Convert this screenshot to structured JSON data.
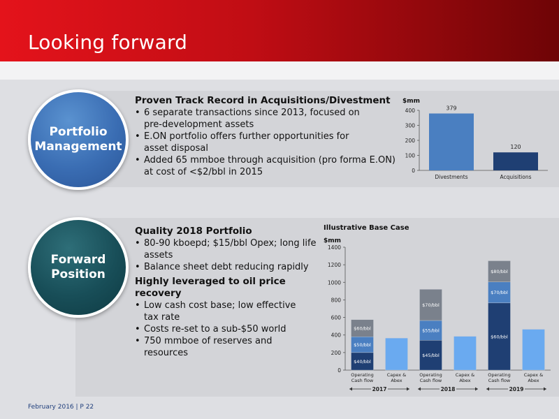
{
  "header": {
    "title": "Looking forward"
  },
  "section1": {
    "circle": [
      "Portfolio",
      "Management"
    ],
    "heading": "Proven Track Record in Acquisitions/Divestment",
    "bullets": [
      [
        "6 separate transactions since 2013, focused on",
        "pre-development assets"
      ],
      [
        "E.ON portfolio offers further opportunities for",
        "asset disposal"
      ],
      [
        "Added 65 mmboe through acquisition (pro forma E.ON)",
        "at cost of <$2/bbl in 2015"
      ]
    ]
  },
  "section2": {
    "circle": [
      "Forward",
      "Position"
    ],
    "heading1": "Quality 2018 Portfolio",
    "bullets1": [
      [
        "80-90 kboepd; $15/bbl Opex; long life",
        "assets"
      ],
      [
        "Balance sheet debt reducing rapidly"
      ]
    ],
    "heading2": "Highly leveraged to oil price recovery",
    "bullets2": [
      [
        "Low cash cost base; low effective",
        "tax rate"
      ],
      [
        "Costs re-set to a sub-$50 world"
      ],
      [
        "750 mmboe of reserves and",
        "resources"
      ]
    ]
  },
  "chart_data": [
    {
      "type": "bar",
      "ylabel": "$mm",
      "categories": [
        "Divestments",
        "Acquisitions"
      ],
      "values": [
        379,
        120
      ],
      "ylim": [
        0,
        400
      ],
      "yticks": [
        0,
        100,
        200,
        300,
        400
      ],
      "colors": [
        "#4a7fc1",
        "#1f3f73"
      ],
      "grid": false
    },
    {
      "type": "bar",
      "stacked": true,
      "title": "Illustrative Base Case",
      "ylabel": "$mm",
      "ylim": [
        0,
        1400
      ],
      "yticks": [
        0,
        200,
        400,
        600,
        800,
        1000,
        1200,
        1400
      ],
      "groups": [
        "2017",
        "2018",
        "2019"
      ],
      "bars": [
        {
          "label": [
            "Operating",
            "Cash flow"
          ],
          "segments": [
            {
              "value": 200,
              "label": "$40/bbl",
              "color": "#1f3f73"
            },
            {
              "value": 180,
              "label": "$50/bbl",
              "color": "#4a7fc1"
            },
            {
              "value": 195,
              "label": "$60/bbl",
              "color": "#7a818c"
            }
          ]
        },
        {
          "label": [
            "Capex &",
            "Abex"
          ],
          "segments": [
            {
              "value": 365,
              "label": "",
              "color": "#6aaaf0"
            }
          ]
        },
        {
          "label": [
            "Operating",
            "Cash flow"
          ],
          "segments": [
            {
              "value": 340,
              "label": "$45/bbl",
              "color": "#1f3f73"
            },
            {
              "value": 225,
              "label": "$55/bbl",
              "color": "#4a7fc1"
            },
            {
              "value": 355,
              "label": "$70/bbl",
              "color": "#7a818c"
            }
          ]
        },
        {
          "label": [
            "Capex &",
            "Abex"
          ],
          "segments": [
            {
              "value": 385,
              "label": "",
              "color": "#6aaaf0"
            }
          ]
        },
        {
          "label": [
            "Operating",
            "Cash flow"
          ],
          "segments": [
            {
              "value": 765,
              "label": "$60/bbl",
              "color": "#1f3f73"
            },
            {
              "value": 240,
              "label": "$70/bbl",
              "color": "#4a7fc1"
            },
            {
              "value": 240,
              "label": "$80/bbl",
              "color": "#7a818c"
            }
          ]
        },
        {
          "label": [
            "Capex &",
            "Abex"
          ],
          "segments": [
            {
              "value": 465,
              "label": "",
              "color": "#6aaaf0"
            }
          ]
        }
      ]
    }
  ],
  "footer": {
    "text": "February 2016 | P 22"
  }
}
